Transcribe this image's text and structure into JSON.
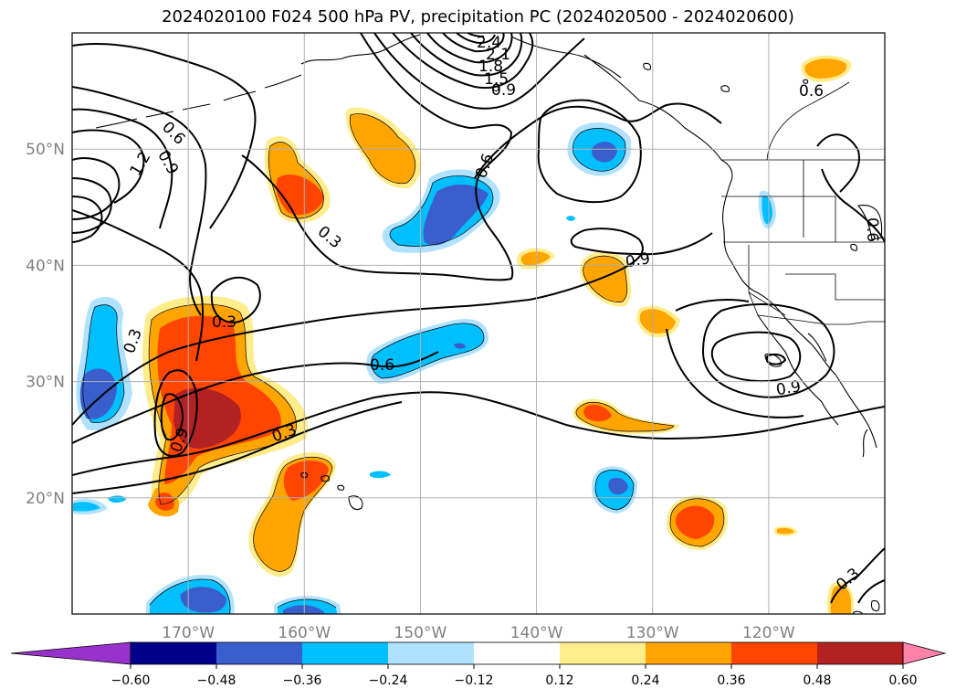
{
  "title": "2024020100 F024 500 hPa PV, precipitation PC (2024020500 - 2024020600)",
  "map": {
    "lon_ticks": [
      {
        "lon": -170,
        "label": "170°W"
      },
      {
        "lon": -160,
        "label": "160°W"
      },
      {
        "lon": -150,
        "label": "150°W"
      },
      {
        "lon": -140,
        "label": "140°W"
      },
      {
        "lon": -130,
        "label": "130°W"
      },
      {
        "lon": -120,
        "label": "120°W"
      }
    ],
    "lat_ticks": [
      {
        "lat": 20,
        "label": "20°N"
      },
      {
        "lat": 30,
        "label": "30°N"
      },
      {
        "lat": 40,
        "label": "40°N"
      },
      {
        "lat": 50,
        "label": "50°N"
      }
    ],
    "lon_range": [
      -180,
      -110
    ],
    "lat_range": [
      10,
      60
    ]
  },
  "pv_labels": [
    "2.4",
    "2.1",
    "1.8",
    "1.5",
    "1.2",
    "0.9",
    "0.6",
    "0.3"
  ],
  "colorbar": {
    "levels": [
      "−0.60",
      "−0.48",
      "−0.36",
      "−0.24",
      "−0.12",
      "0.12",
      "0.24",
      "0.36",
      "0.48",
      "0.60"
    ],
    "colors": [
      "#9932cc",
      "#00008b",
      "#3a5fcd",
      "#00bfff",
      "#b0e2ff",
      "#ffffff",
      "#ffec8b",
      "#ffa500",
      "#ff4500",
      "#b22222",
      "#ff82ab"
    ]
  }
}
